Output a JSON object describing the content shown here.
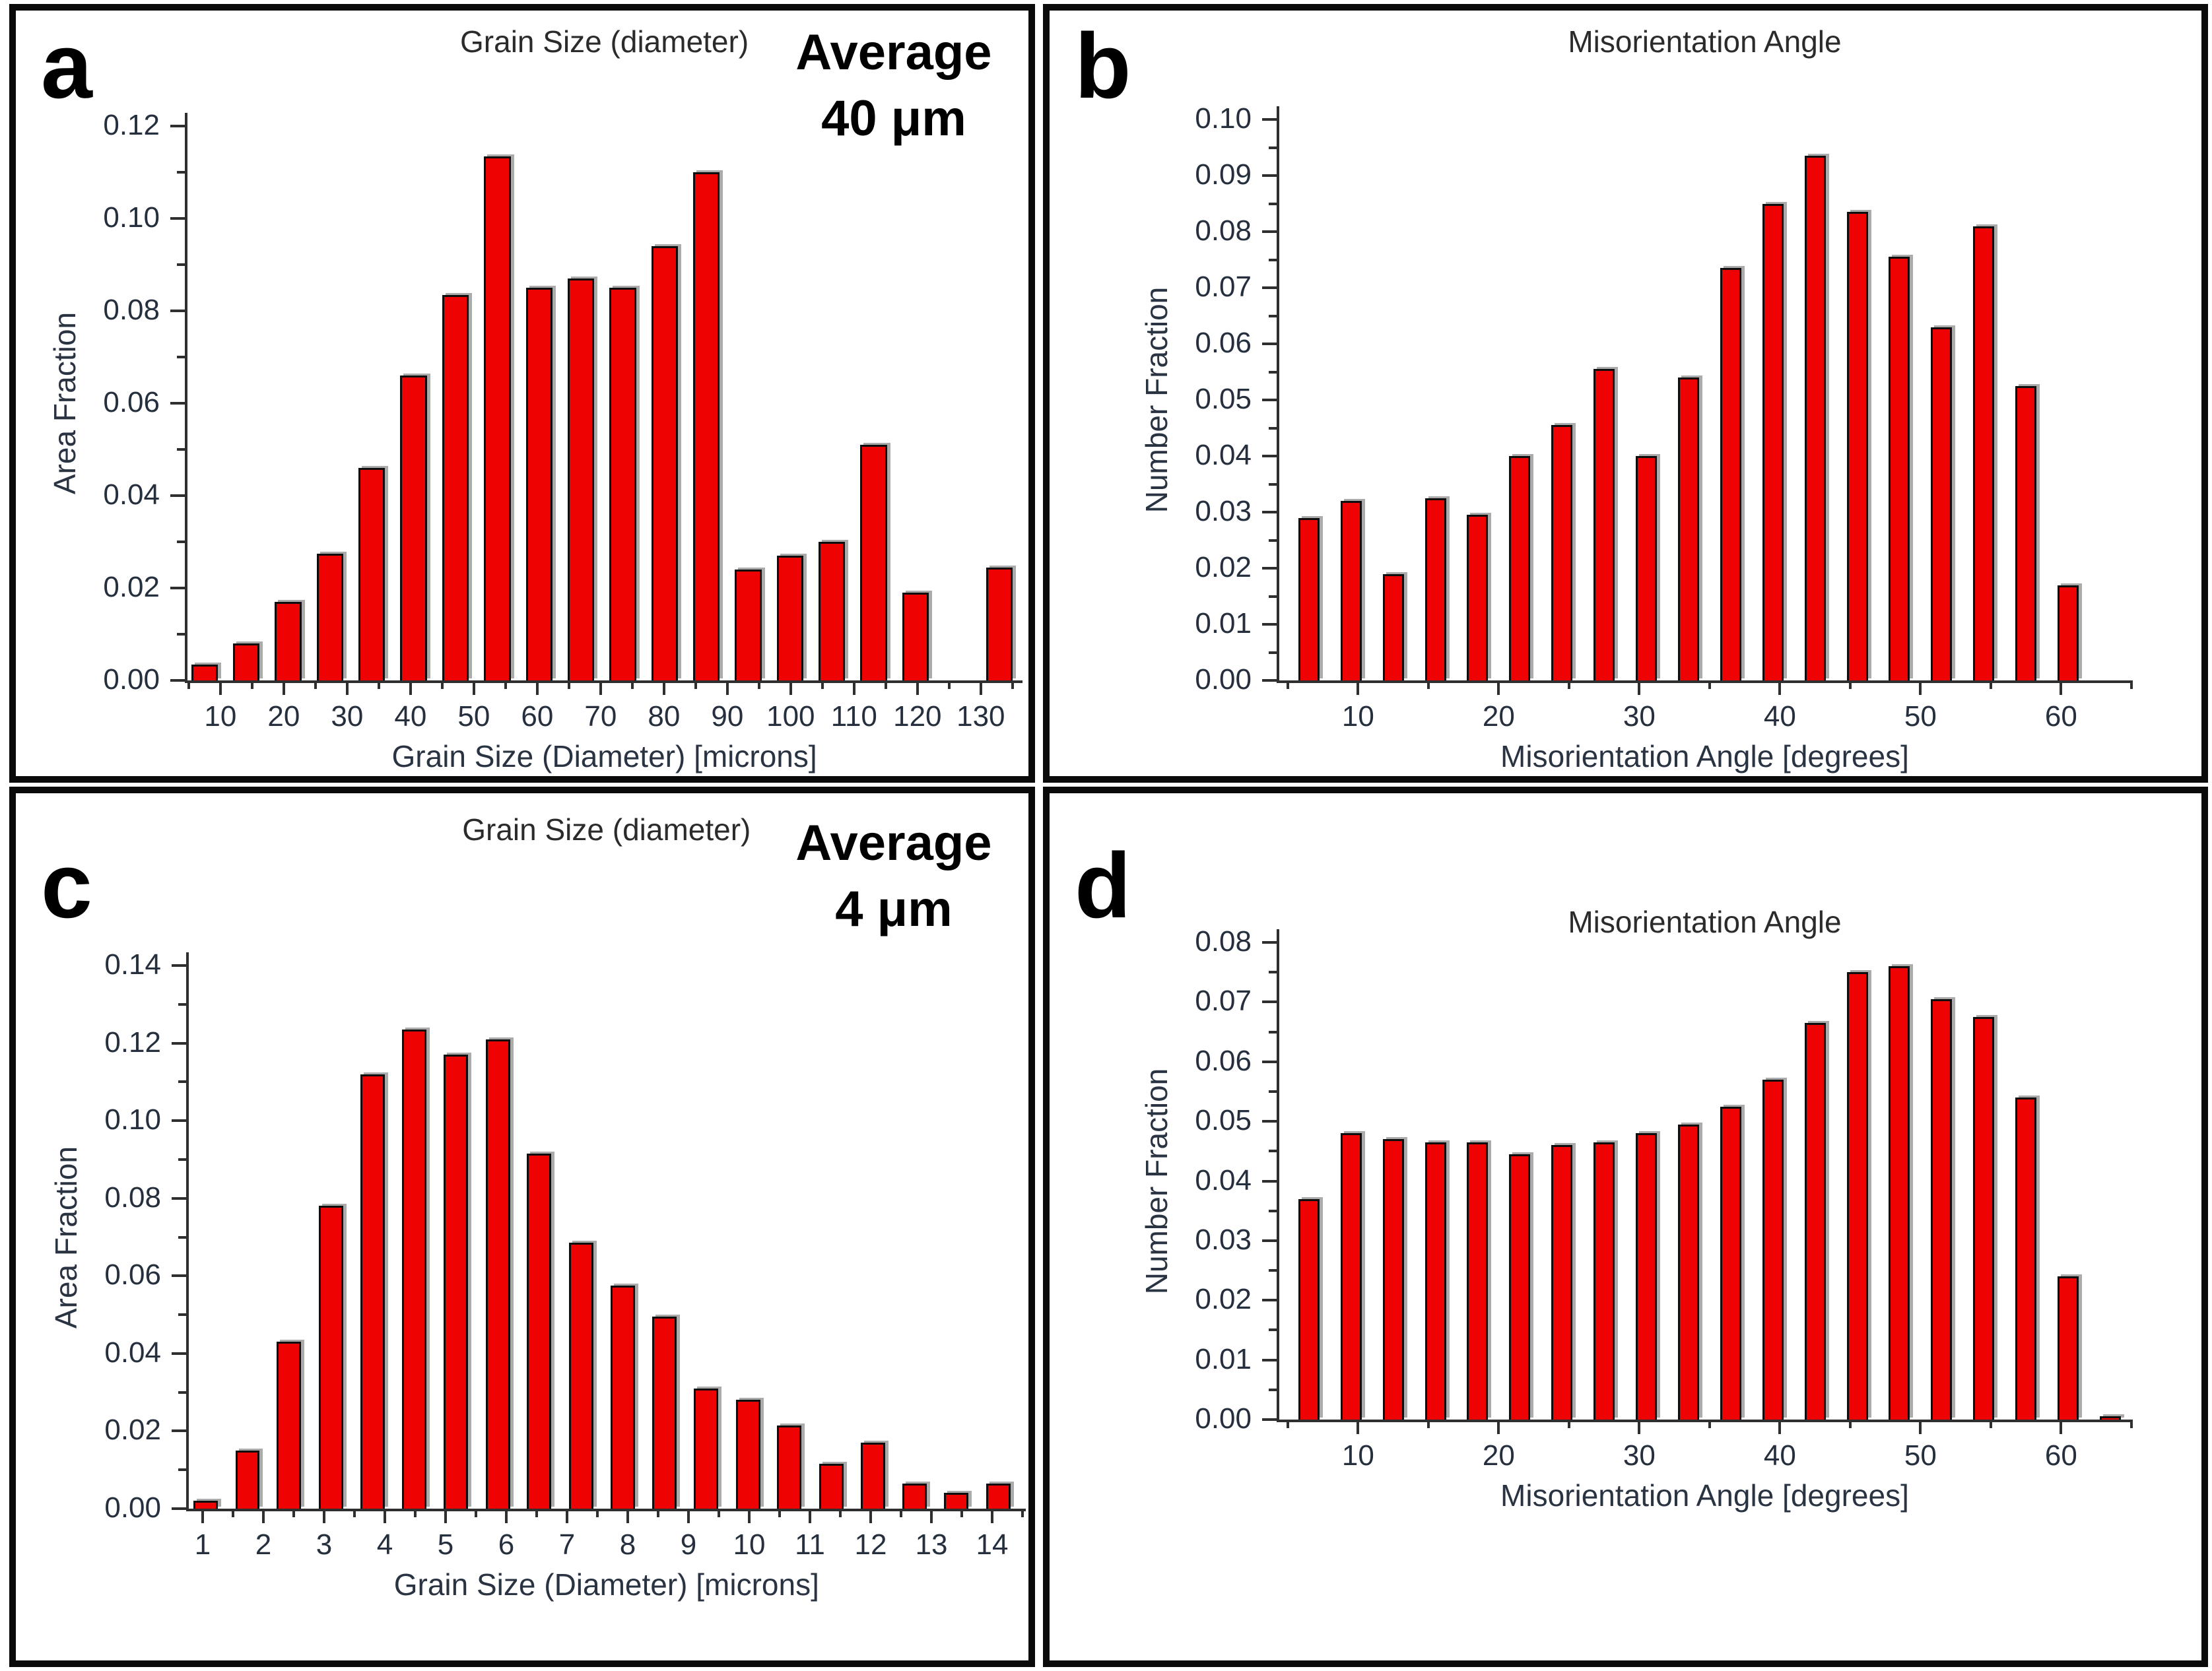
{
  "chart_data": [
    {
      "id": "a",
      "panel_letter": "a",
      "type": "bar",
      "title": "Grain Size (diameter)",
      "annotation": [
        "Average",
        "40 μm"
      ],
      "xlabel": "Grain Size (Diameter) [microns]",
      "ylabel": "Area Fraction",
      "ylim": [
        0,
        0.12
      ],
      "ytick_major": 0.02,
      "ytick_minor": 0.01,
      "ytick_decimals": 2,
      "xlim": [
        4.6,
        136.6
      ],
      "xticks": [
        10,
        20,
        30,
        40,
        50,
        60,
        70,
        80,
        90,
        100,
        110,
        120,
        130
      ],
      "xtick_minor_step": 5,
      "bar_width": 4.2,
      "x": [
        7.5,
        14.1,
        20.7,
        27.3,
        33.9,
        40.5,
        47.1,
        53.7,
        60.3,
        66.9,
        73.5,
        80.1,
        86.7,
        93.3,
        99.9,
        106.5,
        113.1,
        119.7,
        132.9
      ],
      "values": [
        0.0035,
        0.008,
        0.017,
        0.0275,
        0.046,
        0.066,
        0.0835,
        0.1135,
        0.085,
        0.087,
        0.085,
        0.094,
        0.11,
        0.024,
        0.027,
        0.03,
        0.051,
        0.019,
        0.0245
      ]
    },
    {
      "id": "b",
      "panel_letter": "b",
      "type": "bar",
      "title": "Misorientation Angle",
      "xlabel": "Misorientation Angle [degrees]",
      "ylabel": "Number Fraction",
      "ylim": [
        0,
        0.1
      ],
      "ytick_major": 0.01,
      "ytick_minor": 0.005,
      "ytick_decimals": 2,
      "xlim": [
        4.3,
        65
      ],
      "xticks": [
        10,
        20,
        30,
        40,
        50,
        60
      ],
      "xtick_minor_step": 5,
      "bar_width": 1.5,
      "x": [
        6.5,
        9.5,
        12.5,
        15.5,
        18.5,
        21.5,
        24.5,
        27.5,
        30.5,
        33.5,
        36.5,
        39.5,
        42.5,
        45.5,
        48.5,
        51.5,
        54.5,
        57.5,
        60.5
      ],
      "values": [
        0.029,
        0.032,
        0.019,
        0.0325,
        0.0295,
        0.04,
        0.0455,
        0.0555,
        0.04,
        0.054,
        0.0735,
        0.085,
        0.0935,
        0.0835,
        0.0755,
        0.063,
        0.081,
        0.0525,
        0.017
      ]
    },
    {
      "id": "c",
      "panel_letter": "c",
      "type": "bar",
      "title": "Grain Size (diameter)",
      "annotation": [
        "Average",
        "4 μm"
      ],
      "xlabel": "Grain Size (Diameter) [microns]",
      "ylabel": "Area Fraction",
      "ylim": [
        0,
        0.14
      ],
      "ytick_major": 0.02,
      "ytick_minor": 0.01,
      "ytick_decimals": 2,
      "xlim": [
        0.75,
        14.55
      ],
      "xticks": [
        1,
        2,
        3,
        4,
        5,
        6,
        7,
        8,
        9,
        10,
        11,
        12,
        13,
        14
      ],
      "xtick_minor_step": 0.5,
      "bar_width": 0.4,
      "x": [
        1.05,
        1.74,
        2.42,
        3.11,
        3.8,
        4.48,
        5.17,
        5.86,
        6.54,
        7.23,
        7.92,
        8.6,
        9.29,
        9.98,
        10.66,
        11.35,
        12.04,
        12.72,
        13.41,
        14.1
      ],
      "values": [
        0.002,
        0.015,
        0.043,
        0.078,
        0.112,
        0.1235,
        0.117,
        0.121,
        0.0915,
        0.0685,
        0.0575,
        0.0495,
        0.031,
        0.028,
        0.0215,
        0.0115,
        0.017,
        0.0065,
        0.004,
        0.0065
      ]
    },
    {
      "id": "d",
      "panel_letter": "d",
      "type": "bar",
      "title": "Misorientation Angle",
      "xlabel": "Misorientation Angle [degrees]",
      "ylabel": "Number Fraction",
      "ylim": [
        0,
        0.08
      ],
      "ytick_major": 0.01,
      "ytick_minor": 0.005,
      "ytick_decimals": 2,
      "xlim": [
        4.3,
        65
      ],
      "xticks": [
        10,
        20,
        30,
        40,
        50,
        60
      ],
      "xtick_minor_step": 5,
      "bar_width": 1.5,
      "x": [
        6.5,
        9.5,
        12.5,
        15.5,
        18.5,
        21.5,
        24.5,
        27.5,
        30.5,
        33.5,
        36.5,
        39.5,
        42.5,
        45.5,
        48.5,
        51.5,
        54.5,
        57.5,
        60.5,
        63.5
      ],
      "values": [
        0.037,
        0.048,
        0.047,
        0.0465,
        0.0465,
        0.0445,
        0.046,
        0.0465,
        0.048,
        0.0495,
        0.0525,
        0.057,
        0.0665,
        0.075,
        0.076,
        0.0705,
        0.0675,
        0.054,
        0.024,
        0.0005
      ]
    }
  ]
}
